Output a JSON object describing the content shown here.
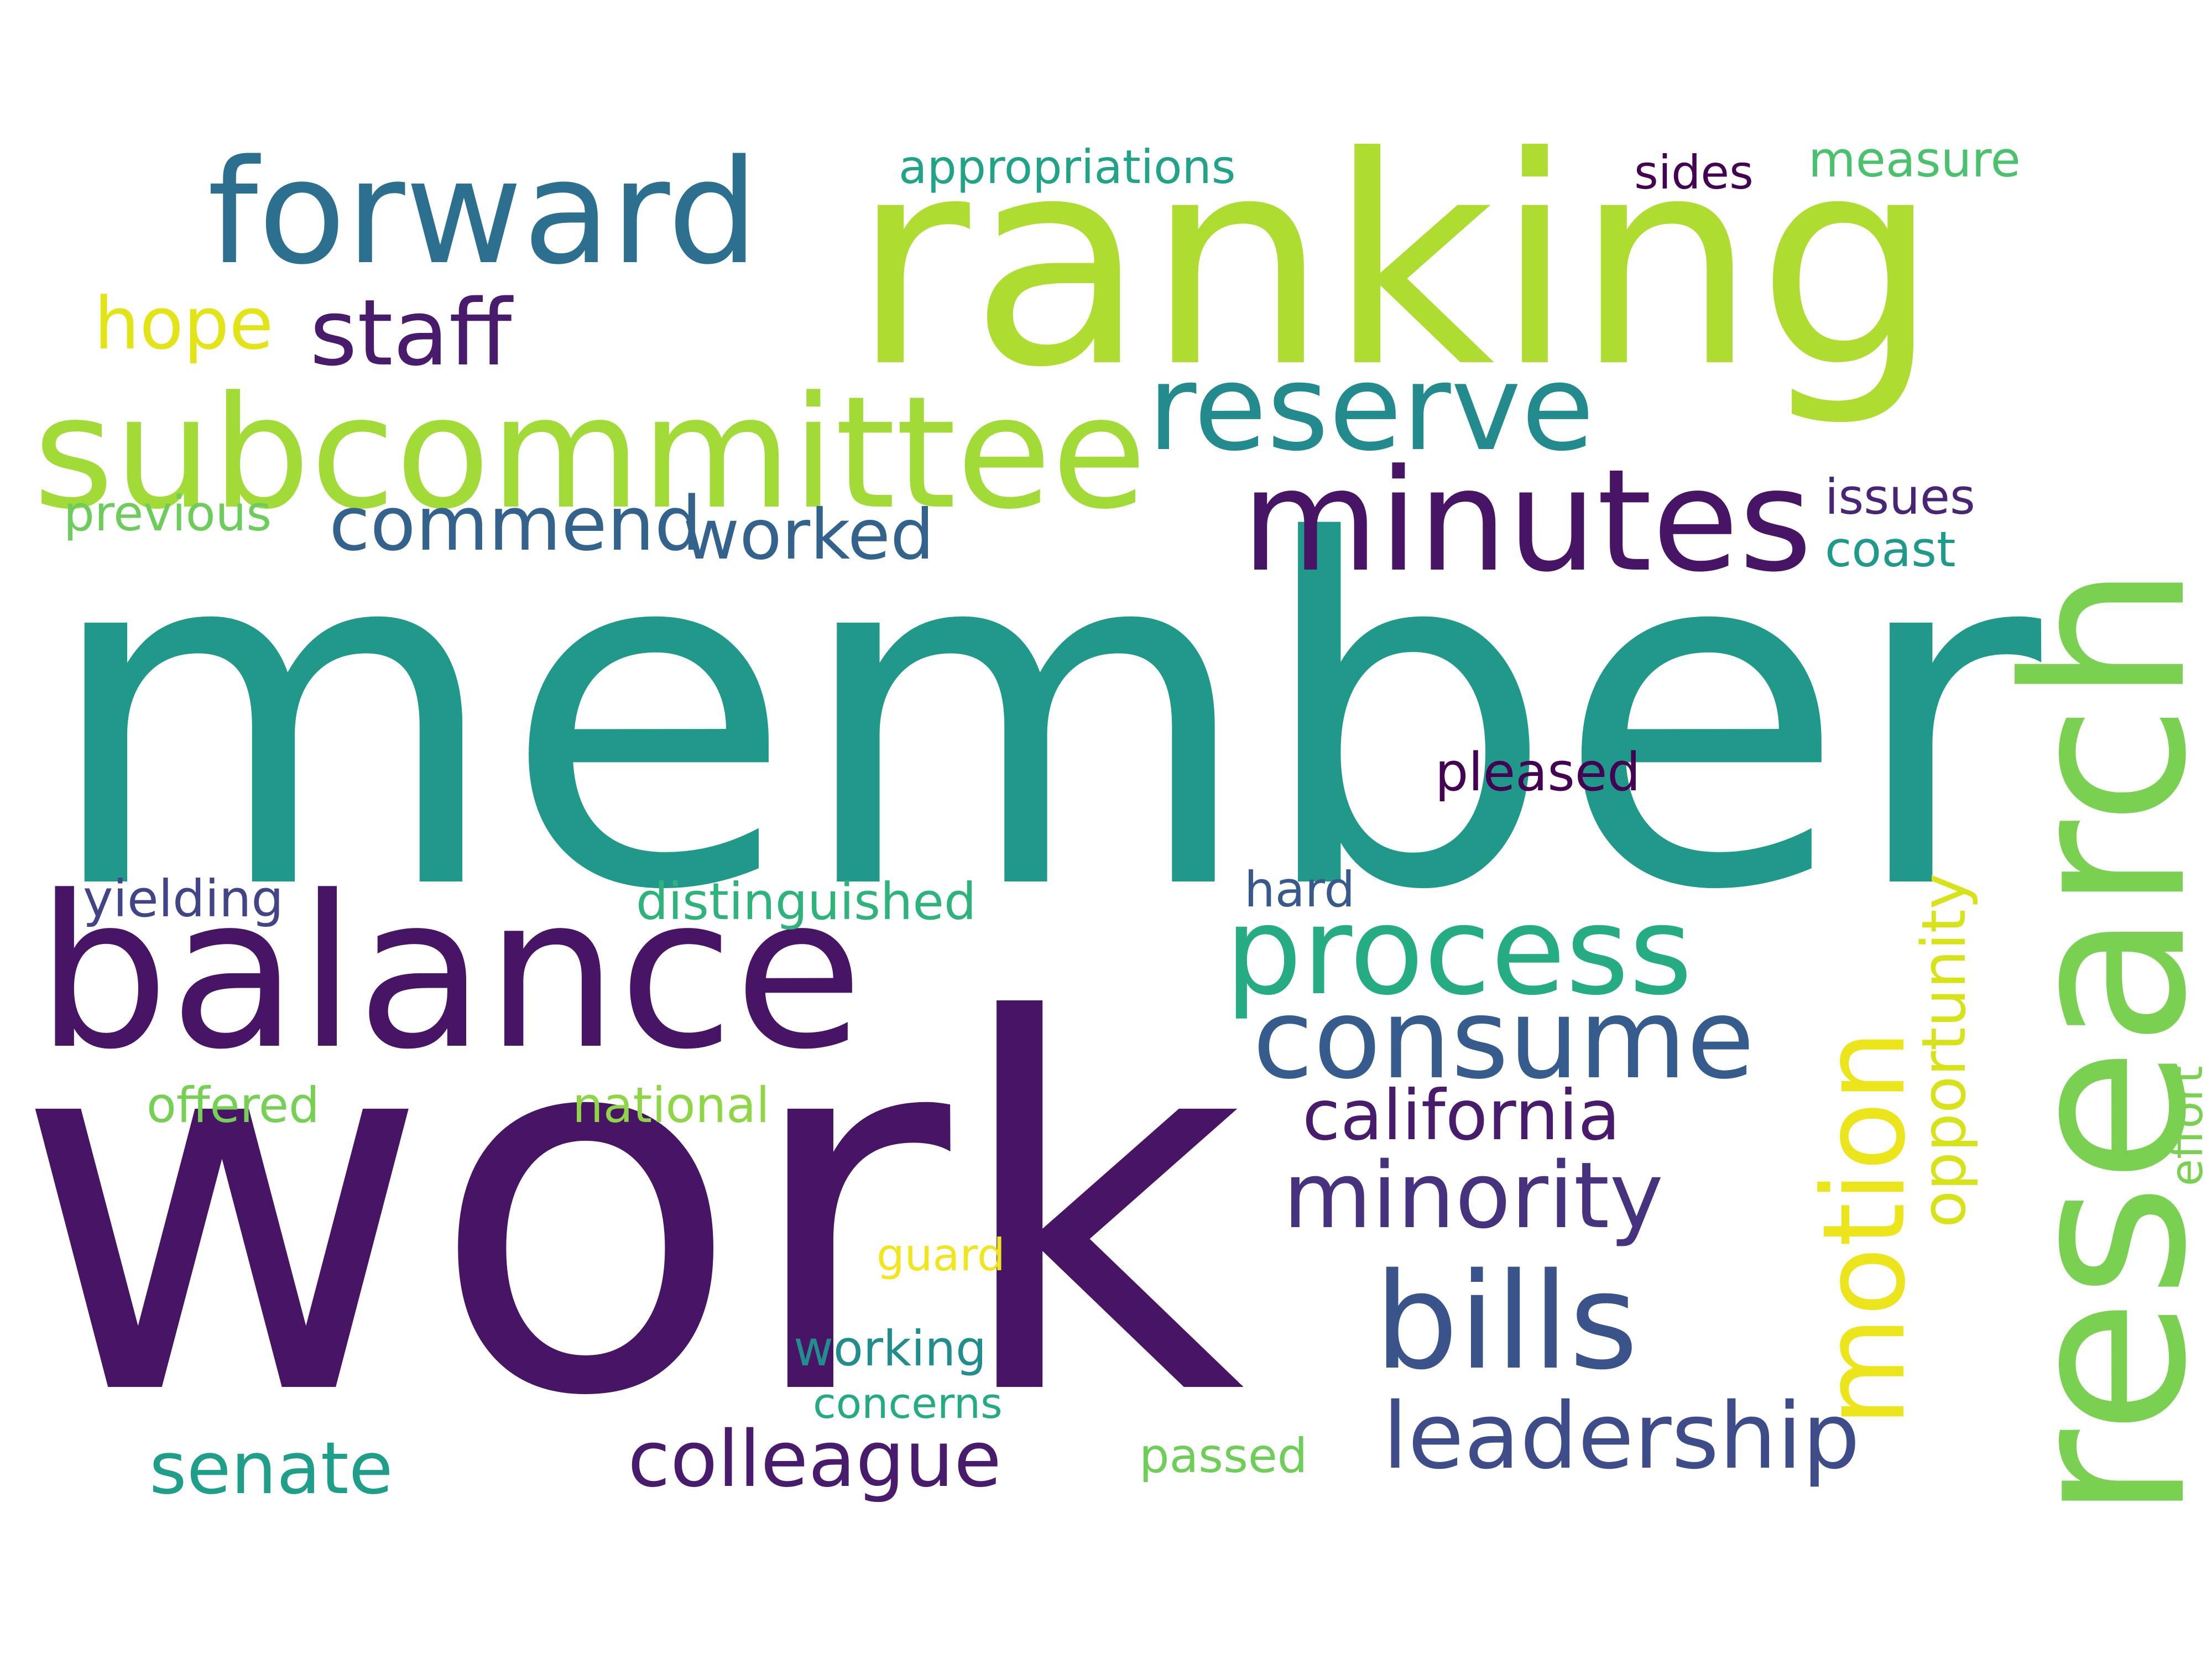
{
  "words": [
    {
      "id": "member",
      "text": "member",
      "color": "#21998a"
    },
    {
      "id": "work",
      "text": "work",
      "color": "#471466"
    },
    {
      "id": "ranking",
      "text": "ranking",
      "color": "#aedc30"
    },
    {
      "id": "research",
      "text": "research",
      "color": "#7ad151"
    },
    {
      "id": "balance",
      "text": "balance",
      "color": "#471466"
    },
    {
      "id": "subcommittee",
      "text": "subcommittee",
      "color": "#a2da37"
    },
    {
      "id": "forward",
      "text": "forward",
      "color": "#2d6f8e"
    },
    {
      "id": "minutes",
      "text": "minutes",
      "color": "#471466"
    },
    {
      "id": "reserve",
      "text": "reserve",
      "color": "#238a8d"
    },
    {
      "id": "process",
      "text": "process",
      "color": "#25ac82"
    },
    {
      "id": "consume",
      "text": "consume",
      "color": "#365c8d"
    },
    {
      "id": "bills",
      "text": "bills",
      "color": "#3a538b"
    },
    {
      "id": "motion",
      "text": "motion",
      "color": "#ece51b"
    },
    {
      "id": "leadership",
      "text": "leadership",
      "color": "#3e4c8a"
    },
    {
      "id": "minority",
      "text": "minority",
      "color": "#46327e"
    },
    {
      "id": "colleague",
      "text": "colleague",
      "color": "#481b6d"
    },
    {
      "id": "california",
      "text": "california",
      "color": "#481b6d"
    },
    {
      "id": "staff",
      "text": "staff",
      "color": "#481b6d"
    },
    {
      "id": "senate",
      "text": "senate",
      "color": "#1f9e89"
    },
    {
      "id": "commend",
      "text": "commend",
      "color": "#33638d"
    },
    {
      "id": "worked",
      "text": "worked",
      "color": "#33638d"
    },
    {
      "id": "opportunity",
      "text": "opportunity",
      "color": "#d8e219"
    },
    {
      "id": "hope",
      "text": "hope",
      "color": "#e3e418"
    },
    {
      "id": "distinguished",
      "text": "distinguished",
      "color": "#2eb37c"
    },
    {
      "id": "pleased",
      "text": "pleased",
      "color": "#440154"
    },
    {
      "id": "appropriations",
      "text": "appropriations",
      "color": "#20a386"
    },
    {
      "id": "measure",
      "text": "measure",
      "color": "#4ac16d"
    },
    {
      "id": "sides",
      "text": "sides",
      "color": "#440154"
    },
    {
      "id": "issues",
      "text": "issues",
      "color": "#482576"
    },
    {
      "id": "coast",
      "text": "coast",
      "color": "#1f9a8a"
    },
    {
      "id": "previous",
      "text": "previous",
      "color": "#6ccd5a"
    },
    {
      "id": "yielding",
      "text": "yielding",
      "color": "#414487"
    },
    {
      "id": "hard",
      "text": "hard",
      "color": "#38598c"
    },
    {
      "id": "offered",
      "text": "offered",
      "color": "#75d054"
    },
    {
      "id": "national",
      "text": "national",
      "color": "#8ed645"
    },
    {
      "id": "effort",
      "text": "effort",
      "color": "#7ad151"
    },
    {
      "id": "guard",
      "text": "guard",
      "color": "#f1e51d"
    },
    {
      "id": "working",
      "text": "working",
      "color": "#218e8d"
    },
    {
      "id": "concerns",
      "text": "concerns",
      "color": "#25ab82"
    },
    {
      "id": "passed",
      "text": "passed",
      "color": "#6ece58"
    }
  ]
}
